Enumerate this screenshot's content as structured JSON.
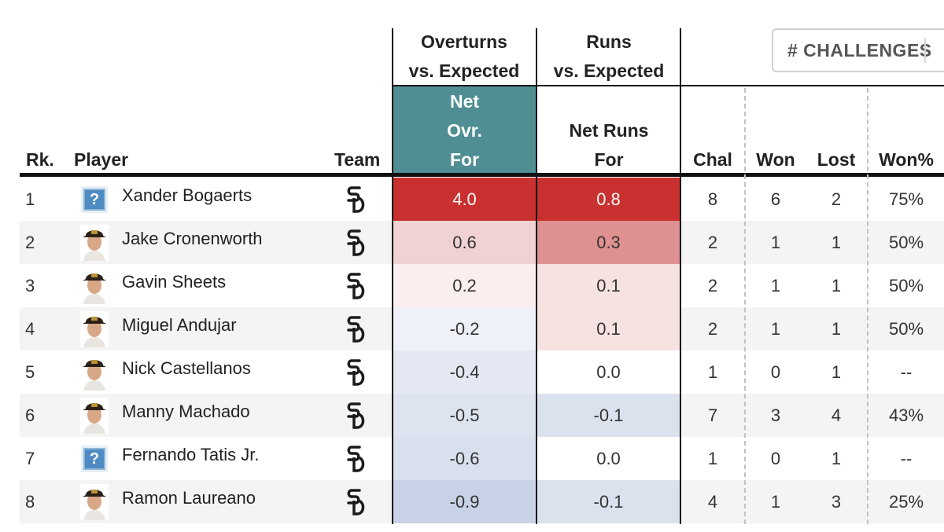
{
  "group_headers": {
    "overturns_line1": "Overturns",
    "overturns_line2": "vs. Expected",
    "runs_line1": "Runs",
    "runs_line2": "vs. Expected"
  },
  "challenges_button": {
    "label": "# CHALLENGES"
  },
  "columns": {
    "rank": "Rk.",
    "player": "Player",
    "team": "Team",
    "net_ovr_line1": "Net",
    "net_ovr_line2": "Ovr.",
    "net_ovr_line3": "For",
    "net_runs_line1": "Net Runs",
    "net_runs_line2": "For",
    "chal": "Chal",
    "won": "Won",
    "lost": "Lost",
    "won_pct": "Won%"
  },
  "colors": {
    "net_ovr_header_bg": "#4f8e93",
    "net_ovr_header_text": "#ffffff",
    "row_alt_bg": "#f4f4f4",
    "team_logo_color": "#1b1b1b"
  },
  "rows": [
    {
      "rank": "1",
      "player": "Xander Bogaerts",
      "photo": "placeholder-icon",
      "team_logo": "sd-logo-icon",
      "net_ovr": "4.0",
      "net_ovr_bg": "#c8312f",
      "net_ovr_fg": "#ffffff",
      "net_runs": "0.8",
      "net_runs_bg": "#c8312f",
      "net_runs_fg": "#ffffff",
      "chal": "8",
      "won": "6",
      "lost": "2",
      "won_pct": "75%"
    },
    {
      "rank": "2",
      "player": "Jake Cronenworth",
      "photo": "player-headshot",
      "team_logo": "sd-logo-icon",
      "net_ovr": "0.6",
      "net_ovr_bg": "#f0d2d4",
      "net_ovr_fg": "#333333",
      "net_runs": "0.3",
      "net_runs_bg": "#de9190",
      "net_runs_fg": "#333333",
      "chal": "2",
      "won": "1",
      "lost": "1",
      "won_pct": "50%"
    },
    {
      "rank": "3",
      "player": "Gavin Sheets",
      "photo": "player-headshot",
      "team_logo": "sd-logo-icon",
      "net_ovr": "0.2",
      "net_ovr_bg": "#fbeeee",
      "net_ovr_fg": "#333333",
      "net_runs": "0.1",
      "net_runs_bg": "#f7e2e2",
      "net_runs_fg": "#333333",
      "chal": "2",
      "won": "1",
      "lost": "1",
      "won_pct": "50%"
    },
    {
      "rank": "4",
      "player": "Miguel Andujar",
      "photo": "player-headshot",
      "team_logo": "sd-logo-icon",
      "net_ovr": "-0.2",
      "net_ovr_bg": "#eef1f7",
      "net_ovr_fg": "#333333",
      "net_runs": "0.1",
      "net_runs_bg": "#f7e2e2",
      "net_runs_fg": "#333333",
      "chal": "2",
      "won": "1",
      "lost": "1",
      "won_pct": "50%"
    },
    {
      "rank": "5",
      "player": "Nick Castellanos",
      "photo": "player-headshot",
      "team_logo": "sd-logo-icon",
      "net_ovr": "-0.4",
      "net_ovr_bg": "#e3e8f2",
      "net_ovr_fg": "#333333",
      "net_runs": "0.0",
      "net_runs_bg": "#ffffff",
      "net_runs_fg": "#333333",
      "chal": "1",
      "won": "0",
      "lost": "1",
      "won_pct": "--"
    },
    {
      "rank": "6",
      "player": "Manny Machado",
      "photo": "player-headshot",
      "team_logo": "sd-logo-icon",
      "net_ovr": "-0.5",
      "net_ovr_bg": "#dde3ef",
      "net_ovr_fg": "#333333",
      "net_runs": "-0.1",
      "net_runs_bg": "#dbe2ee",
      "net_runs_fg": "#333333",
      "chal": "7",
      "won": "3",
      "lost": "4",
      "won_pct": "43%"
    },
    {
      "rank": "7",
      "player": "Fernando Tatis Jr.",
      "photo": "placeholder-icon",
      "team_logo": "sd-logo-icon",
      "net_ovr": "-0.6",
      "net_ovr_bg": "#d8dfed",
      "net_ovr_fg": "#333333",
      "net_runs": "0.0",
      "net_runs_bg": "#ffffff",
      "net_runs_fg": "#333333",
      "chal": "1",
      "won": "0",
      "lost": "1",
      "won_pct": "--"
    },
    {
      "rank": "8",
      "player": "Ramon Laureano",
      "photo": "player-headshot",
      "team_logo": "sd-logo-icon",
      "net_ovr": "-0.9",
      "net_ovr_bg": "#c8d2e6",
      "net_ovr_fg": "#333333",
      "net_runs": "-0.1",
      "net_runs_bg": "#dbe2ee",
      "net_runs_fg": "#333333",
      "chal": "4",
      "won": "1",
      "lost": "3",
      "won_pct": "25%"
    }
  ]
}
